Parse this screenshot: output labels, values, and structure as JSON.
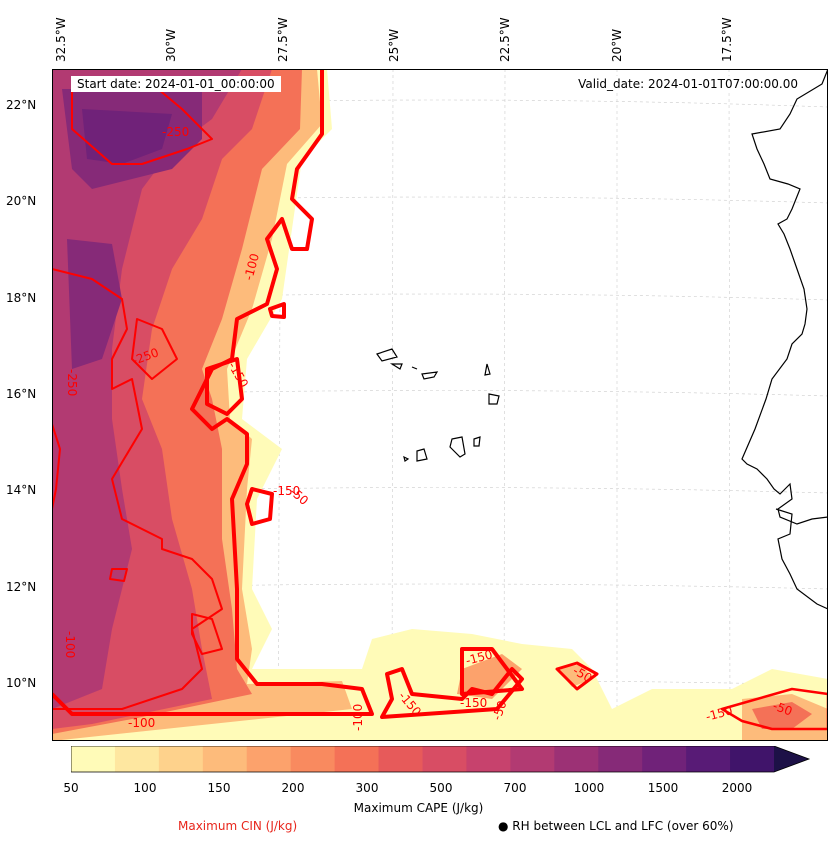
{
  "map": {
    "start_date": "Start date: 2024-01-01_00:00:00",
    "valid_date": "Valid_date: 2024-01-01T07:00:00.00",
    "lon_labels": [
      "32.5°W",
      "30°W",
      "27.5°W",
      "25°W",
      "22.5°W",
      "20°W",
      "17.5°W"
    ],
    "lat_labels": [
      "22°N",
      "20°N",
      "18°N",
      "16°N",
      "14°N",
      "12°N",
      "10°N"
    ],
    "cin_contour_labels": [
      "-250",
      "-250",
      "-250",
      "-100",
      "-150",
      "-150",
      "-50",
      "-100",
      "-150",
      "-150",
      "-150",
      "-50",
      "-50",
      "-50",
      "-100",
      "-150",
      "-100"
    ],
    "colors": {
      "cin_contour": "#ff0000",
      "coastline": "#000000",
      "cape_low": "#fffdbf",
      "cape_high": "#1d1147"
    }
  },
  "colorbar": {
    "ticks": [
      "50",
      "100",
      "150",
      "200",
      "300",
      "500",
      "700",
      "1000",
      "1500",
      "2000"
    ],
    "label": "Maximum CAPE (J/kg)",
    "colors": [
      "#fffbb8",
      "#fee7a0",
      "#fed28c",
      "#fdbb7b",
      "#fca26c",
      "#f98a5f",
      "#f47157",
      "#e75a5a",
      "#d84d64",
      "#c7426d",
      "#b23a72",
      "#9c3175",
      "#862a78",
      "#702279",
      "#581b76",
      "#40146a",
      "#1d1147"
    ]
  },
  "legend": {
    "cin_label": "Maximum CIN (J/kg)",
    "rh_label": "● RH between LCL and LFC (over 60%)"
  }
}
